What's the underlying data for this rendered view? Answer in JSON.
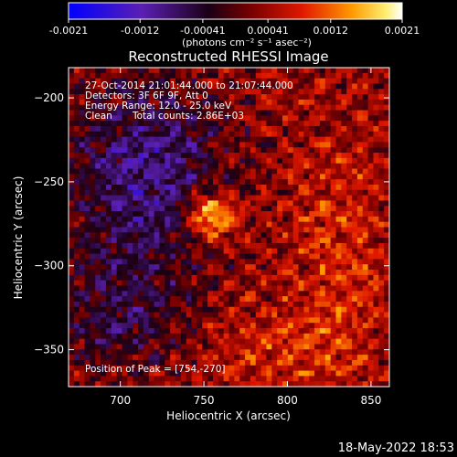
{
  "colorbar": {
    "tick_labels": [
      "-0.0021",
      "-0.0012",
      "-0.00041",
      "0.00041",
      "0.0012",
      "0.0021"
    ],
    "tick_values": [
      -0.0021,
      -0.0012,
      -0.00041,
      0.00041,
      0.0012,
      0.0021
    ],
    "range": [
      -0.0021,
      0.0021
    ],
    "unit_label": "(photons cm⁻² s⁻¹ asec⁻²)"
  },
  "annotations": {
    "time_range": "27-Oct-2014 21:01:44.000 to 21:07:44.000",
    "detectors": "Detectors: 3F 6F 9F, Att 0",
    "energy_range": "Energy Range: 12.0 - 25.0 keV",
    "method": "Clean",
    "total_counts": "Total counts: 2.86E+03",
    "peak_position": "Position of Peak = [754,-270]"
  },
  "footer": {
    "timestamp": "18-May-2022 18:53"
  },
  "chart_data": {
    "type": "heatmap",
    "title": "Reconstructed RHESSI Image",
    "xlabel": "Heliocentric X (arcsec)",
    "ylabel": "Heliocentric Y (arcsec)",
    "xlim": [
      669,
      861
    ],
    "ylim": [
      -372,
      -182
    ],
    "x_ticks": [
      700,
      750,
      800,
      850
    ],
    "y_ticks": [
      -200,
      -250,
      -300,
      -350
    ],
    "colormap": "blue-purple-black-red-orange-yellow-white",
    "value_range": [
      -0.0021,
      0.0021
    ],
    "peak": {
      "x": 754,
      "y": -270
    },
    "grid": false,
    "legend": "colorbar top"
  }
}
